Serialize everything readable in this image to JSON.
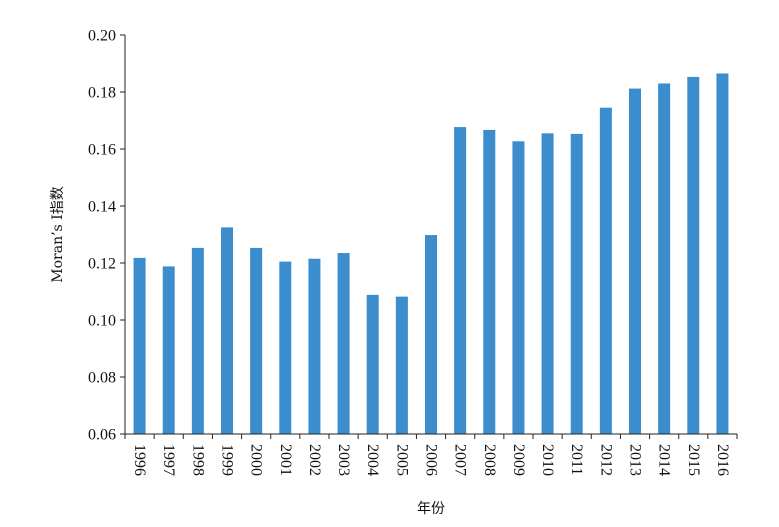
{
  "chart_data": {
    "type": "bar",
    "title": "",
    "xlabel": "年份",
    "ylabel": "Moran’s I指数",
    "categories": [
      "1996",
      "1997",
      "1998",
      "1999",
      "2000",
      "2001",
      "2002",
      "2003",
      "2004",
      "2005",
      "2006",
      "2007",
      "2008",
      "2009",
      "2010",
      "2011",
      "2012",
      "2013",
      "2014",
      "2015",
      "2016"
    ],
    "values": [
      0.1218,
      0.1188,
      0.1253,
      0.1325,
      0.1253,
      0.1205,
      0.1215,
      0.1235,
      0.1088,
      0.1082,
      0.1298,
      0.1677,
      0.1667,
      0.1627,
      0.1655,
      0.1653,
      0.1745,
      0.1812,
      0.183,
      0.1853,
      0.1865
    ],
    "ylim": [
      0.06,
      0.2
    ],
    "yticks": [
      "0.06",
      "0.08",
      "0.10",
      "0.12",
      "0.14",
      "0.16",
      "0.18",
      "0.20"
    ],
    "grid": false,
    "legend": "none",
    "bar_color": "#3b8dcd",
    "axis_color": "#222222"
  }
}
